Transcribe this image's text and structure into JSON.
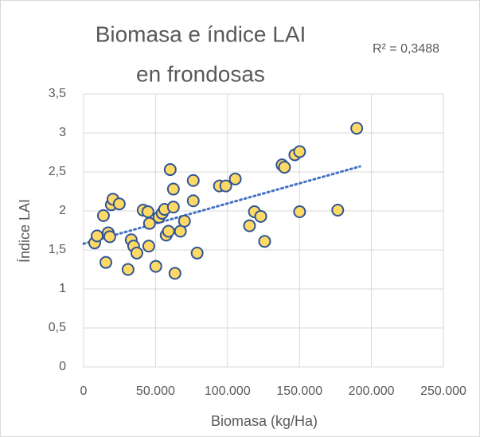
{
  "chart_data": {
    "type": "scatter",
    "title": [
      "Biomasa e índice LAI",
      "en frondosas"
    ],
    "annotation": "R² = 0,3488",
    "xlabel": "Biomasa (kg/Ha)",
    "ylabel": "Índice LAI",
    "x": [
      7700,
      9400,
      13800,
      15500,
      17100,
      18200,
      19300,
      20400,
      24800,
      30900,
      33100,
      34800,
      37000,
      41400,
      44700,
      45800,
      45300,
      50200,
      52400,
      54600,
      56300,
      57400,
      59000,
      60200,
      62400,
      62400,
      63500,
      67300,
      70100,
      76200,
      76200,
      78900,
      94400,
      98800,
      105400,
      115300,
      118700,
      123100,
      125800,
      137900,
      139600,
      146800,
      150100,
      150100,
      176600,
      189800
    ],
    "series": [
      {
        "name": "Índice LAI",
        "color": "#FFD966",
        "edge": "#2F5597",
        "values": [
          1.59,
          1.68,
          1.94,
          1.34,
          1.72,
          1.67,
          2.08,
          2.15,
          2.09,
          1.25,
          1.63,
          1.55,
          1.46,
          2.01,
          1.99,
          1.84,
          1.55,
          1.29,
          1.92,
          1.97,
          2.02,
          1.69,
          1.74,
          2.53,
          2.28,
          2.05,
          1.2,
          1.74,
          1.87,
          2.13,
          2.39,
          1.46,
          2.32,
          2.32,
          2.41,
          1.81,
          1.99,
          1.93,
          1.61,
          2.59,
          2.56,
          2.72,
          2.76,
          1.99,
          2.01,
          3.06
        ]
      }
    ],
    "trendline": {
      "color": "#4472C4",
      "x": [
        0,
        192000
      ],
      "y": [
        1.58,
        2.57
      ]
    },
    "xlim": [
      0,
      250000
    ],
    "xticks": [
      0,
      {
        "value": 50000,
        "label": "50.000"
      },
      {
        "value": 100000,
        "label": "100.000"
      },
      {
        "value": 150000,
        "label": "150.000"
      },
      {
        "value": 200000,
        "label": "200.000"
      },
      {
        "value": 250000,
        "label": "250.000"
      }
    ],
    "ylim": [
      0,
      3.5
    ],
    "yticks": [
      0,
      {
        "value": 0.5,
        "label": "0,5"
      },
      1,
      {
        "value": 1.5,
        "label": "1,5"
      },
      2,
      {
        "value": 2.5,
        "label": "2,5"
      },
      3,
      {
        "value": 3.5,
        "label": "3,5"
      }
    ],
    "grid": true
  }
}
